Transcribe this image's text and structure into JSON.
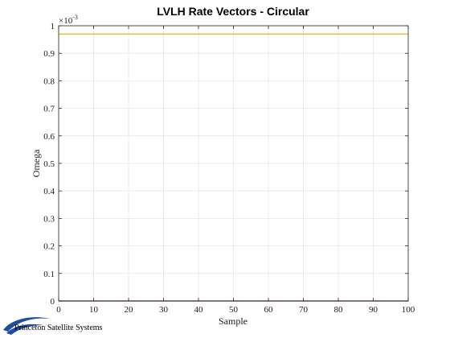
{
  "chart_data": {
    "type": "line",
    "title": "LVLH Rate Vectors - Circular",
    "xlabel": "Sample",
    "ylabel": "Omega",
    "xlim": [
      0,
      100
    ],
    "ylim": [
      0,
      1
    ],
    "y_multiplier_base": "×10",
    "y_multiplier_exponent": "-3",
    "x_ticks": [
      0,
      10,
      20,
      30,
      40,
      50,
      60,
      70,
      80,
      90,
      100
    ],
    "y_ticks": [
      0,
      0.1,
      0.2,
      0.3,
      0.4,
      0.5,
      0.6,
      0.7,
      0.8,
      0.9,
      1
    ],
    "x_tick_labels": [
      "0",
      "10",
      "20",
      "30",
      "40",
      "50",
      "60",
      "70",
      "80",
      "90",
      "100"
    ],
    "y_tick_labels": [
      "0",
      "0.1",
      "0.2",
      "0.3",
      "0.4",
      "0.5",
      "0.6",
      "0.7",
      "0.8",
      "0.9",
      "1"
    ],
    "grid": true,
    "series": [
      {
        "x": [
          0,
          100
        ],
        "values": [
          0,
          0
        ],
        "color": "#0072BD"
      },
      {
        "x": [
          0,
          100
        ],
        "values": [
          0,
          0
        ],
        "color": "#D95319"
      },
      {
        "x": [
          0,
          100
        ],
        "values": [
          0.97,
          0.97
        ],
        "color": "#EDB120"
      }
    ]
  },
  "logo": {
    "text": "Princeton Satellite Systems"
  }
}
